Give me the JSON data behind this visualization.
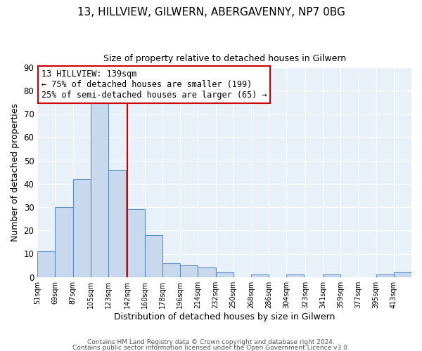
{
  "title1": "13, HILLVIEW, GILWERN, ABERGAVENNY, NP7 0BG",
  "title2": "Size of property relative to detached houses in Gilwern",
  "xlabel": "Distribution of detached houses by size in Gilwern",
  "ylabel": "Number of detached properties",
  "bin_edges": [
    51,
    69,
    87,
    105,
    123,
    142,
    160,
    178,
    196,
    214,
    232,
    250,
    268,
    286,
    304,
    323,
    341,
    359,
    377,
    395,
    413
  ],
  "bin_labels": [
    "51sqm",
    "69sqm",
    "87sqm",
    "105sqm",
    "123sqm",
    "142sqm",
    "160sqm",
    "178sqm",
    "196sqm",
    "214sqm",
    "232sqm",
    "250sqm",
    "268sqm",
    "286sqm",
    "304sqm",
    "323sqm",
    "341sqm",
    "359sqm",
    "377sqm",
    "395sqm",
    "413sqm"
  ],
  "counts": [
    11,
    30,
    42,
    75,
    46,
    29,
    18,
    6,
    5,
    4,
    2,
    0,
    1,
    0,
    1,
    0,
    1,
    0,
    0,
    1,
    2
  ],
  "bar_color": "#c8d9ee",
  "bar_edge_color": "#5b8fc9",
  "vline_x": 142,
  "vline_color": "#cc0000",
  "ylim": [
    0,
    90
  ],
  "yticks": [
    0,
    10,
    20,
    30,
    40,
    50,
    60,
    70,
    80,
    90
  ],
  "annotation_box_title": "13 HILLVIEW: 139sqm",
  "annotation_line1": "← 75% of detached houses are smaller (199)",
  "annotation_line2": "25% of semi-detached houses are larger (65) →",
  "annotation_box_edge_color": "#cc0000",
  "footer1": "Contains HM Land Registry data © Crown copyright and database right 2024.",
  "footer2": "Contains public sector information licensed under the Open Government Licence v3.0.",
  "bg_color": "#ffffff",
  "plot_bg_color": "#e8f0f8",
  "grid_color": "#ffffff",
  "title1_fontsize": 11,
  "title2_fontsize": 9,
  "ylabel_fontsize": 9,
  "xlabel_fontsize": 9
}
